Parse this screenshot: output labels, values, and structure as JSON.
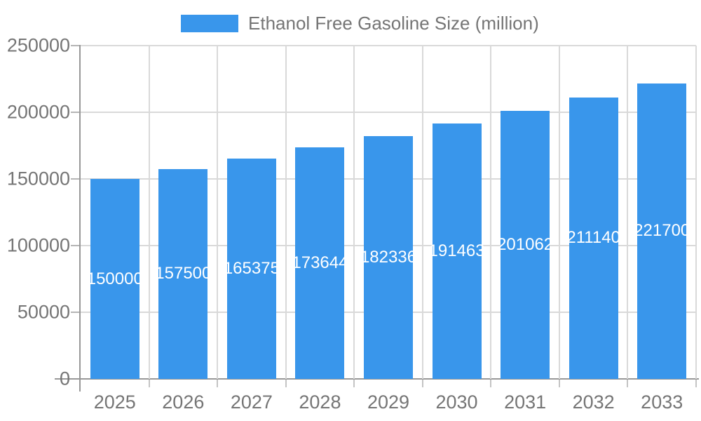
{
  "chart_data": {
    "type": "bar",
    "title": "",
    "legend": "Ethanol Free Gasoline Size (million)",
    "legend_position": "top",
    "categories": [
      "2025",
      "2026",
      "2027",
      "2028",
      "2029",
      "2030",
      "2031",
      "2032",
      "2033"
    ],
    "values": [
      150000,
      157500,
      165375,
      173644,
      182336,
      191463,
      201062,
      211140,
      221700
    ],
    "bar_labels": [
      "150000",
      "157500",
      "165375",
      "173644",
      "182336",
      "191463",
      "201062",
      "211140",
      "221700"
    ],
    "xlabel": "",
    "ylabel": "",
    "ylim": [
      0,
      250000
    ],
    "ytick_step": 50000,
    "yticks": [
      "0",
      "50000",
      "100000",
      "150000",
      "200000",
      "250000"
    ],
    "grid": true,
    "colors": {
      "bar": "#3996EB",
      "bar_label_text": "#ffffff",
      "axis_text": "#757575",
      "gridline": "#d9d9d9",
      "axis_line": "#989898",
      "background": "#ffffff"
    }
  }
}
